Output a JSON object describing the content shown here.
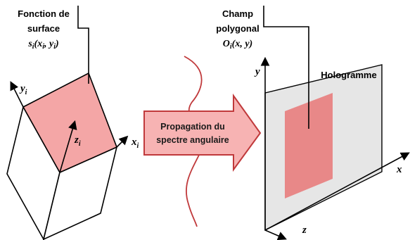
{
  "left": {
    "label_line1": "Fonction de",
    "label_line2": "surface",
    "formula_main": "s",
    "formula_sub": "i",
    "formula_args": "(x",
    "formula_args_sub1": "i",
    "formula_args_mid": ", y",
    "formula_args_sub2": "i",
    "formula_args_end": ")",
    "axis_y": "y",
    "axis_y_sub": "i",
    "axis_x": "x",
    "axis_x_sub": "i",
    "axis_z": "z",
    "axis_z_sub": "i"
  },
  "middle": {
    "arrow_line1": "Propagation du",
    "arrow_line2": "spectre angulaire"
  },
  "right": {
    "label_line1": "Champ",
    "label_line2": "polygonal",
    "formula_main": "O",
    "formula_sub": "i",
    "formula_args": "(x, y)",
    "hologram_label": "Hologramme",
    "axis_y": "y",
    "axis_x": "x",
    "axis_z": "z"
  },
  "colors": {
    "face_pink": "#f4a6a6",
    "hologram_plane": "#e6e6e6",
    "hologram_field": "#e88888",
    "arrow_fill": "#f7b3b3",
    "arrow_stroke": "#c0393b",
    "wave": "#c0393b"
  }
}
